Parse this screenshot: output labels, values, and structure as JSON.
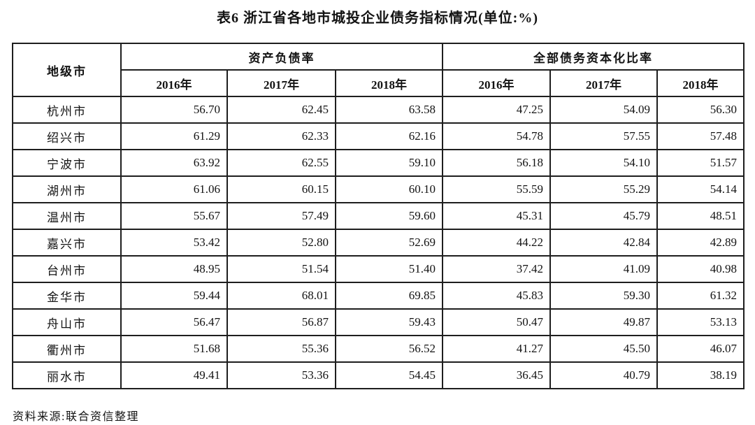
{
  "title": "表6  浙江省各地市城投企业债务指标情况(单位:%)",
  "table": {
    "corner_header": "地级市",
    "groups": [
      {
        "label": "资产负债率",
        "years": [
          "2016年",
          "2017年",
          "2018年"
        ]
      },
      {
        "label": "全部债务资本化比率",
        "years": [
          "2016年",
          "2017年",
          "2018年"
        ]
      }
    ],
    "rows": [
      {
        "city": "杭州市",
        "values": [
          "56.70",
          "62.45",
          "63.58",
          "47.25",
          "54.09",
          "56.30"
        ]
      },
      {
        "city": "绍兴市",
        "values": [
          "61.29",
          "62.33",
          "62.16",
          "54.78",
          "57.55",
          "57.48"
        ]
      },
      {
        "city": "宁波市",
        "values": [
          "63.92",
          "62.55",
          "59.10",
          "56.18",
          "54.10",
          "51.57"
        ]
      },
      {
        "city": "湖州市",
        "values": [
          "61.06",
          "60.15",
          "60.10",
          "55.59",
          "55.29",
          "54.14"
        ]
      },
      {
        "city": "温州市",
        "values": [
          "55.67",
          "57.49",
          "59.60",
          "45.31",
          "45.79",
          "48.51"
        ]
      },
      {
        "city": "嘉兴市",
        "values": [
          "53.42",
          "52.80",
          "52.69",
          "44.22",
          "42.84",
          "42.89"
        ]
      },
      {
        "city": "台州市",
        "values": [
          "48.95",
          "51.54",
          "51.40",
          "37.42",
          "41.09",
          "40.98"
        ]
      },
      {
        "city": "金华市",
        "values": [
          "59.44",
          "68.01",
          "69.85",
          "45.83",
          "59.30",
          "61.32"
        ]
      },
      {
        "city": "舟山市",
        "values": [
          "56.47",
          "56.87",
          "59.43",
          "50.47",
          "49.87",
          "53.13"
        ]
      },
      {
        "city": "衢州市",
        "values": [
          "51.68",
          "55.36",
          "56.52",
          "41.27",
          "45.50",
          "46.07"
        ]
      },
      {
        "city": "丽水市",
        "values": [
          "49.41",
          "53.36",
          "54.45",
          "36.45",
          "40.79",
          "38.19"
        ]
      }
    ]
  },
  "source": "资料来源:联合资信整理"
}
